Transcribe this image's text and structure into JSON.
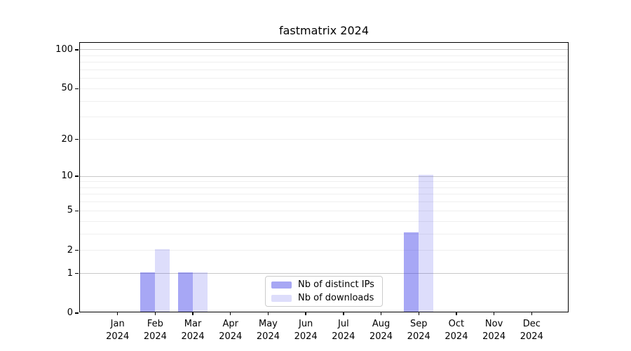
{
  "title": "fastmatrix 2024",
  "chart_data": {
    "type": "bar",
    "title": "fastmatrix 2024",
    "categories": [
      "Jan 2024",
      "Feb 2024",
      "Mar 2024",
      "Apr 2024",
      "May 2024",
      "Jun 2024",
      "Jul 2024",
      "Aug 2024",
      "Sep 2024",
      "Oct 2024",
      "Nov 2024",
      "Dec 2024"
    ],
    "months": [
      "Jan",
      "Feb",
      "Mar",
      "Apr",
      "May",
      "Jun",
      "Jul",
      "Aug",
      "Sep",
      "Oct",
      "Nov",
      "Dec"
    ],
    "year": "2024",
    "series": [
      {
        "name": "Nb of distinct IPs",
        "color": "#2d2de6",
        "alpha": 0.42,
        "blended_hex": "#a7a7f4",
        "values": [
          0,
          1,
          1,
          0,
          0,
          0,
          0,
          0,
          3,
          0,
          0,
          0
        ]
      },
      {
        "name": "Nb of downloads",
        "color": "#2d2de6",
        "alpha": 0.16,
        "blended_hex": "#ddddfb",
        "values": [
          0,
          2,
          1,
          0,
          0,
          0,
          0,
          0,
          10,
          0,
          0,
          0
        ]
      }
    ],
    "xlabel": "",
    "ylabel": "",
    "yscale": "log1p",
    "ylim": [
      0,
      113
    ],
    "yticks": [
      0,
      1,
      2,
      5,
      10,
      20,
      50,
      100
    ],
    "minor_gridlines": [
      2,
      3,
      4,
      5,
      6,
      7,
      8,
      9,
      20,
      30,
      40,
      50,
      60,
      70,
      80,
      90
    ],
    "major_gridlines": [
      1,
      10,
      100
    ],
    "grid": true,
    "legend_position": "lower center"
  },
  "colors": {
    "background": "#ffffff",
    "axis": "#000000",
    "grid_minor": "#efefef",
    "grid_major": "#c9c9c9",
    "legend_border": "#cccccc"
  }
}
